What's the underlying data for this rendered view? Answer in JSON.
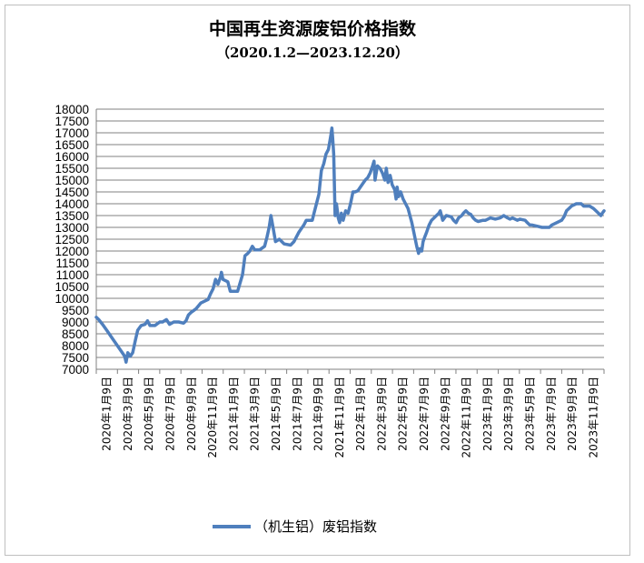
{
  "chart_data": {
    "type": "line",
    "title": "中国再生资源废铝价格指数",
    "subtitle": "（2020.1.2—2023.12.20）",
    "xlabel": "",
    "ylabel": "",
    "ylim": [
      7000,
      18000
    ],
    "ystep": 500,
    "grid": true,
    "legend_position": "bottom",
    "colors": {
      "series": "#4f7fbd",
      "grid": "#808080",
      "axis": "#808080"
    },
    "x_tick_labels": [
      "2020年1月9日",
      "2020年3月9日",
      "2020年5月9日",
      "2020年7月9日",
      "2020年9月9日",
      "2020年11月9日",
      "2021年1月9日",
      "2021年3月9日",
      "2021年5月9日",
      "2021年7月9日",
      "2021年9月9日",
      "2021年11月9日",
      "2022年1月9日",
      "2022年3月9日",
      "2022年5月9日",
      "2022年7月9日",
      "2022年9月9日",
      "2022年11月9日",
      "2023年1月9日",
      "2023年3月9日",
      "2023年5月9日",
      "2023年7月9日",
      "2023年9月9日",
      "2023年11月9日"
    ],
    "x_range": [
      "2020-01-02",
      "2023-12-20"
    ],
    "series": [
      {
        "name": "（机生铝）废铝指数",
        "points": [
          [
            "2020-01-02",
            9200
          ],
          [
            "2020-01-09",
            9100
          ],
          [
            "2020-01-20",
            8900
          ],
          [
            "2020-02-03",
            8600
          ],
          [
            "2020-02-17",
            8300
          ],
          [
            "2020-03-02",
            8000
          ],
          [
            "2020-03-16",
            7700
          ],
          [
            "2020-03-23",
            7550
          ],
          [
            "2020-03-27",
            7300
          ],
          [
            "2020-04-01",
            7700
          ],
          [
            "2020-04-08",
            7550
          ],
          [
            "2020-04-15",
            7700
          ],
          [
            "2020-04-22",
            8200
          ],
          [
            "2020-04-29",
            8650
          ],
          [
            "2020-05-09",
            8850
          ],
          [
            "2020-05-20",
            8900
          ],
          [
            "2020-05-27",
            9050
          ],
          [
            "2020-06-03",
            8850
          ],
          [
            "2020-06-17",
            8850
          ],
          [
            "2020-07-01",
            9000
          ],
          [
            "2020-07-09",
            9000
          ],
          [
            "2020-07-20",
            9100
          ],
          [
            "2020-07-29",
            8900
          ],
          [
            "2020-08-10",
            9000
          ],
          [
            "2020-08-24",
            9000
          ],
          [
            "2020-09-07",
            8950
          ],
          [
            "2020-09-14",
            9050
          ],
          [
            "2020-09-21",
            9300
          ],
          [
            "2020-09-28",
            9400
          ],
          [
            "2020-10-12",
            9550
          ],
          [
            "2020-10-26",
            9800
          ],
          [
            "2020-11-09",
            9900
          ],
          [
            "2020-11-16",
            9950
          ],
          [
            "2020-11-23",
            10200
          ],
          [
            "2020-11-30",
            10400
          ],
          [
            "2020-12-07",
            10800
          ],
          [
            "2020-12-14",
            10600
          ],
          [
            "2020-12-21",
            10900
          ],
          [
            "2020-12-24",
            11100
          ],
          [
            "2020-12-28",
            10800
          ],
          [
            "2021-01-11",
            10700
          ],
          [
            "2021-01-18",
            10300
          ],
          [
            "2021-01-25",
            10300
          ],
          [
            "2021-02-01",
            10300
          ],
          [
            "2021-02-08",
            10300
          ],
          [
            "2021-02-22",
            11000
          ],
          [
            "2021-03-01",
            11800
          ],
          [
            "2021-03-09",
            11900
          ],
          [
            "2021-03-15",
            12000
          ],
          [
            "2021-03-22",
            12200
          ],
          [
            "2021-03-29",
            12050
          ],
          [
            "2021-04-12",
            12050
          ],
          [
            "2021-04-26",
            12200
          ],
          [
            "2021-05-03",
            12600
          ],
          [
            "2021-05-09",
            13000
          ],
          [
            "2021-05-14",
            13500
          ],
          [
            "2021-05-20",
            13000
          ],
          [
            "2021-05-27",
            12400
          ],
          [
            "2021-06-07",
            12500
          ],
          [
            "2021-06-14",
            12400
          ],
          [
            "2021-06-21",
            12300
          ],
          [
            "2021-07-09",
            12250
          ],
          [
            "2021-07-19",
            12400
          ],
          [
            "2021-08-02",
            12800
          ],
          [
            "2021-08-16",
            13100
          ],
          [
            "2021-08-23",
            13300
          ],
          [
            "2021-09-09",
            13300
          ],
          [
            "2021-09-14",
            13600
          ],
          [
            "2021-09-21",
            14000
          ],
          [
            "2021-09-28",
            14400
          ],
          [
            "2021-10-05",
            15400
          ],
          [
            "2021-10-12",
            15700
          ],
          [
            "2021-10-18",
            16100
          ],
          [
            "2021-10-25",
            16300
          ],
          [
            "2021-11-01",
            16900
          ],
          [
            "2021-11-04",
            17200
          ],
          [
            "2021-11-06",
            16800
          ],
          [
            "2021-11-09",
            16100
          ],
          [
            "2021-11-13",
            13500
          ],
          [
            "2021-11-17",
            14000
          ],
          [
            "2021-11-22",
            13400
          ],
          [
            "2021-11-26",
            13200
          ],
          [
            "2021-12-01",
            13600
          ],
          [
            "2021-12-06",
            13300
          ],
          [
            "2021-12-13",
            13700
          ],
          [
            "2021-12-20",
            13600
          ],
          [
            "2021-12-27",
            14000
          ],
          [
            "2022-01-03",
            14500
          ],
          [
            "2022-01-09",
            14500
          ],
          [
            "2022-01-17",
            14550
          ],
          [
            "2022-01-24",
            14700
          ],
          [
            "2022-02-07",
            15000
          ],
          [
            "2022-02-14",
            15100
          ],
          [
            "2022-02-21",
            15300
          ],
          [
            "2022-02-28",
            15600
          ],
          [
            "2022-03-04",
            15800
          ],
          [
            "2022-03-07",
            15000
          ],
          [
            "2022-03-09",
            15200
          ],
          [
            "2022-03-14",
            15600
          ],
          [
            "2022-03-21",
            15500
          ],
          [
            "2022-03-28",
            15300
          ],
          [
            "2022-04-04",
            15000
          ],
          [
            "2022-04-08",
            15500
          ],
          [
            "2022-04-13",
            14900
          ],
          [
            "2022-04-19",
            15200
          ],
          [
            "2022-04-25",
            14800
          ],
          [
            "2022-05-02",
            14600
          ],
          [
            "2022-05-06",
            14200
          ],
          [
            "2022-05-09",
            14700
          ],
          [
            "2022-05-13",
            14300
          ],
          [
            "2022-05-19",
            14500
          ],
          [
            "2022-05-26",
            14200
          ],
          [
            "2022-06-02",
            14000
          ],
          [
            "2022-06-09",
            13800
          ],
          [
            "2022-06-20",
            13200
          ],
          [
            "2022-06-27",
            12700
          ],
          [
            "2022-07-04",
            12200
          ],
          [
            "2022-07-09",
            11900
          ],
          [
            "2022-07-13",
            12100
          ],
          [
            "2022-07-18",
            12000
          ],
          [
            "2022-07-22",
            12400
          ],
          [
            "2022-07-27",
            12600
          ],
          [
            "2022-08-01",
            12800
          ],
          [
            "2022-08-08",
            13100
          ],
          [
            "2022-08-15",
            13300
          ],
          [
            "2022-08-22",
            13400
          ],
          [
            "2022-08-29",
            13500
          ],
          [
            "2022-09-05",
            13600
          ],
          [
            "2022-09-09",
            13700
          ],
          [
            "2022-09-16",
            13300
          ],
          [
            "2022-09-26",
            13500
          ],
          [
            "2022-10-10",
            13450
          ],
          [
            "2022-10-17",
            13300
          ],
          [
            "2022-10-24",
            13200
          ],
          [
            "2022-10-31",
            13400
          ],
          [
            "2022-11-09",
            13500
          ],
          [
            "2022-11-14",
            13600
          ],
          [
            "2022-11-21",
            13700
          ],
          [
            "2022-11-28",
            13600
          ],
          [
            "2022-12-05",
            13550
          ],
          [
            "2022-12-12",
            13400
          ],
          [
            "2022-12-19",
            13300
          ],
          [
            "2022-12-26",
            13250
          ],
          [
            "2023-01-09",
            13300
          ],
          [
            "2023-01-16",
            13300
          ],
          [
            "2023-01-30",
            13400
          ],
          [
            "2023-02-13",
            13350
          ],
          [
            "2023-02-27",
            13400
          ],
          [
            "2023-03-09",
            13500
          ],
          [
            "2023-03-20",
            13400
          ],
          [
            "2023-03-27",
            13350
          ],
          [
            "2023-04-03",
            13400
          ],
          [
            "2023-04-17",
            13300
          ],
          [
            "2023-04-24",
            13350
          ],
          [
            "2023-05-09",
            13300
          ],
          [
            "2023-05-15",
            13200
          ],
          [
            "2023-05-22",
            13100
          ],
          [
            "2023-05-29",
            13100
          ],
          [
            "2023-06-12",
            13050
          ],
          [
            "2023-06-26",
            13000
          ],
          [
            "2023-07-09",
            13000
          ],
          [
            "2023-07-17",
            13000
          ],
          [
            "2023-07-24",
            13100
          ],
          [
            "2023-08-07",
            13200
          ],
          [
            "2023-08-21",
            13300
          ],
          [
            "2023-08-28",
            13450
          ],
          [
            "2023-09-04",
            13700
          ],
          [
            "2023-09-11",
            13800
          ],
          [
            "2023-09-18",
            13900
          ],
          [
            "2023-10-02",
            14000
          ],
          [
            "2023-10-16",
            14000
          ],
          [
            "2023-10-23",
            13900
          ],
          [
            "2023-10-30",
            13900
          ],
          [
            "2023-11-09",
            13900
          ],
          [
            "2023-11-20",
            13800
          ],
          [
            "2023-11-27",
            13700
          ],
          [
            "2023-12-04",
            13600
          ],
          [
            "2023-12-11",
            13500
          ],
          [
            "2023-12-15",
            13600
          ],
          [
            "2023-12-20",
            13700
          ]
        ]
      }
    ]
  }
}
